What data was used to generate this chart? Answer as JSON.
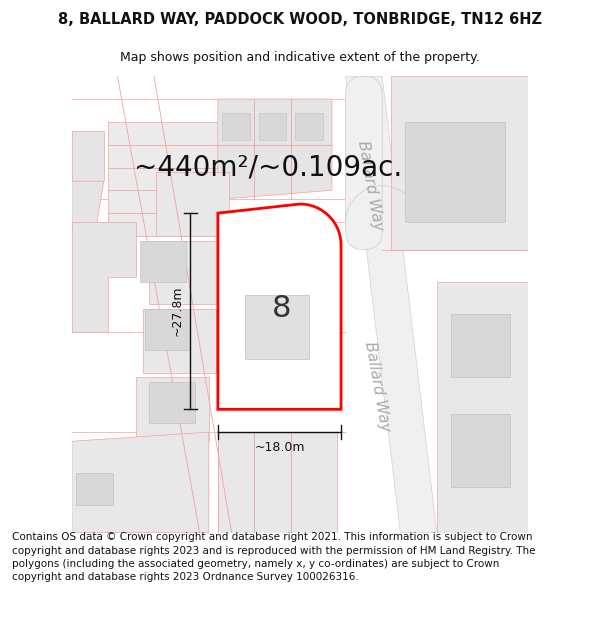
{
  "title_line1": "8, BALLARD WAY, PADDOCK WOOD, TONBRIDGE, TN12 6HZ",
  "title_line2": "Map shows position and indicative extent of the property.",
  "area_label": "~440m²/~0.109ac.",
  "number_label": "8",
  "dim_height": "~27.8m",
  "dim_width": "~18.0m",
  "road_label": "Ballard Way",
  "footer_text": "Contains OS data © Crown copyright and database right 2021. This information is subject to Crown copyright and database rights 2023 and is reproduced with the permission of HM Land Registry. The polygons (including the associated geometry, namely x, y co-ordinates) are subject to Crown copyright and database rights 2023 Ordnance Survey 100026316.",
  "background_color": "#ffffff",
  "map_bg": "#f7f7f7",
  "plot_fill": "#ffffff",
  "plot_edge": "#ff0000",
  "neighbor_stroke": "#f5a0a0",
  "neighbor_fill": "#e8e8e8",
  "title_fontsize": 10.5,
  "subtitle_fontsize": 9,
  "area_fontsize": 20,
  "number_fontsize": 22,
  "dim_fontsize": 9,
  "road_fontsize": 11,
  "footer_fontsize": 7.5
}
